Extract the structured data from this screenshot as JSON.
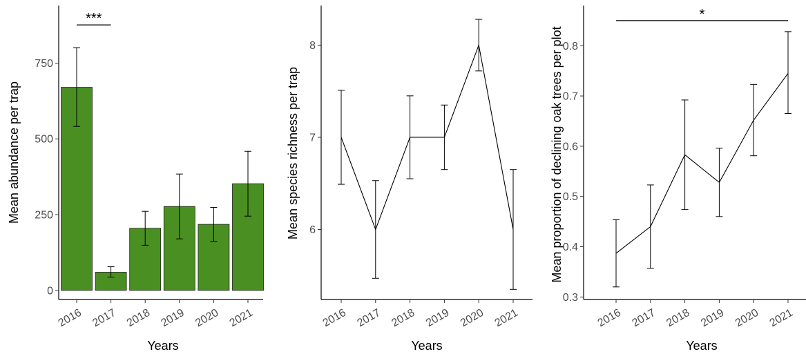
{
  "chart_data": [
    {
      "type": "bar",
      "xlabel": "Years",
      "ylabel": "Mean abundance per trap",
      "categories": [
        "2016",
        "2017",
        "2018",
        "2019",
        "2020",
        "2021"
      ],
      "values": [
        670,
        60,
        205,
        277,
        218,
        352
      ],
      "error_low": [
        541,
        44,
        149,
        170,
        162,
        245
      ],
      "error_high": [
        801,
        78,
        261,
        384,
        274,
        459
      ],
      "ylim": [
        -30,
        940
      ],
      "yticks": [
        0,
        250,
        500,
        750
      ],
      "bar_color": "#4a8f22",
      "significance": {
        "from": "2016",
        "to": "2017",
        "label": "***",
        "y": 876
      },
      "grid": false
    },
    {
      "type": "line",
      "xlabel": "Years",
      "ylabel": "Mean species richness per trap",
      "categories": [
        "2016",
        "2017",
        "2018",
        "2019",
        "2020",
        "2021"
      ],
      "values": [
        7.0,
        6.0,
        7.0,
        7.0,
        8.0,
        6.0
      ],
      "error_low": [
        6.49,
        5.47,
        6.55,
        6.65,
        7.72,
        5.35
      ],
      "error_high": [
        7.51,
        6.53,
        7.45,
        7.35,
        8.28,
        6.65
      ],
      "ylim": [
        5.24,
        8.43
      ],
      "yticks": [
        6,
        7,
        8
      ],
      "line_color": "#000000",
      "grid": false
    },
    {
      "type": "line",
      "xlabel": "Years",
      "ylabel": "Mean proportion of declining oak trees per plot",
      "categories": [
        "2016",
        "2017",
        "2018",
        "2019",
        "2020",
        "2021"
      ],
      "values": [
        0.387,
        0.44,
        0.583,
        0.528,
        0.652,
        0.745
      ],
      "error_low": [
        0.32,
        0.357,
        0.474,
        0.46,
        0.581,
        0.665
      ],
      "error_high": [
        0.454,
        0.523,
        0.692,
        0.596,
        0.723,
        0.828
      ],
      "ylim": [
        0.295,
        0.88
      ],
      "yticks": [
        0.3,
        0.4,
        0.5,
        0.6,
        0.7,
        0.8
      ],
      "line_color": "#000000",
      "significance": {
        "from": "2016",
        "to": "2021",
        "label": "*",
        "y": 0.85
      },
      "grid": false
    }
  ]
}
